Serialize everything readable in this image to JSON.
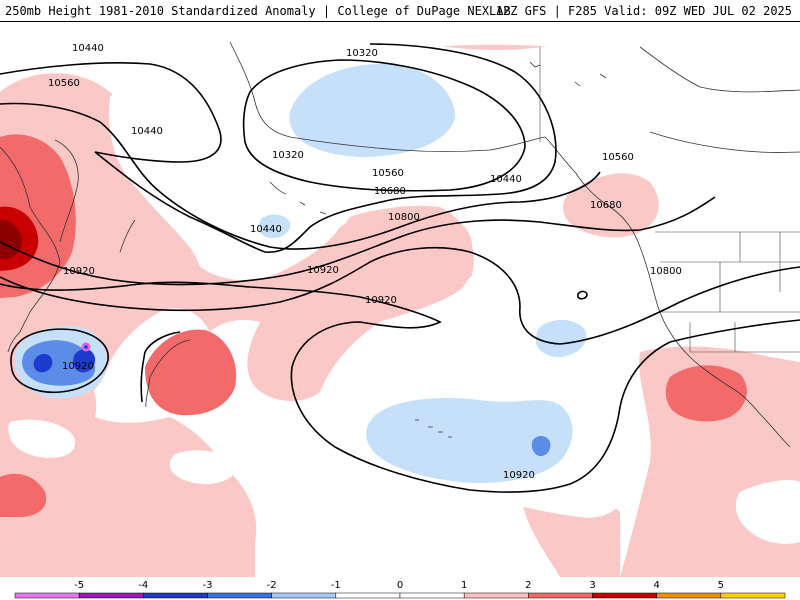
{
  "header": {
    "title": "250mb Height 1981-2010 Standardized Anomaly | College of DuPage NEXLAB",
    "run_info": "12Z GFS | F285 Valid: 09Z WED JUL 02 2025"
  },
  "colors": {
    "ocean": "#ffffff",
    "anom_pos_1": "#fbc8c8",
    "anom_pos_2": "#f26a6a",
    "anom_pos_3": "#c80000",
    "anom_pos_4": "#8c0000",
    "anom_neg_1": "#c6e0fa",
    "anom_neg_2": "#5a8ce8",
    "anom_neg_3": "#1c3cd0",
    "anom_neg_5": "#e060e8",
    "contour": "#000000",
    "coast": "#333333"
  },
  "contour_labels": [
    "10440",
    "10560",
    "10440",
    "10320",
    "10320",
    "10440",
    "10560",
    "10680",
    "10800",
    "10440",
    "10920",
    "10920",
    "10920",
    "10920",
    "10920",
    "10560",
    "10680",
    "10800"
  ],
  "legend": {
    "ticks": [
      "-5",
      "-4",
      "-3",
      "-2",
      "-1",
      "0",
      "1",
      "2",
      "3",
      "4",
      "5"
    ],
    "colors": [
      "#e878e8",
      "#9a1ab8",
      "#1f3bbf",
      "#3a6fe0",
      "#a8c8f8",
      "#ffffff",
      "#ffffff",
      "#fbc2c2",
      "#f06a6a",
      "#c80000",
      "#f09000",
      "#ffd000"
    ]
  }
}
